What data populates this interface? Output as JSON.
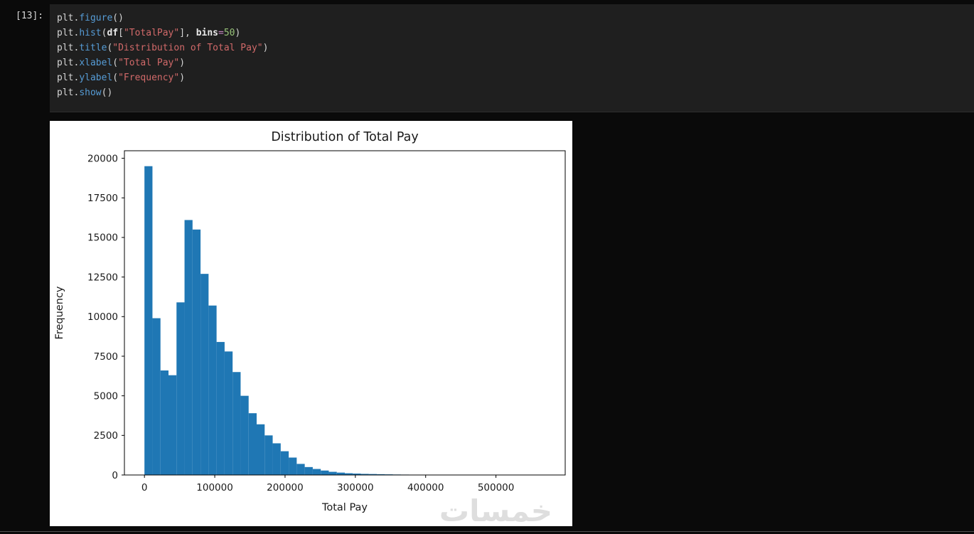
{
  "page": {
    "background": "#0a0a0a"
  },
  "code": {
    "prompt": "[13]:",
    "lines": [
      [
        [
          "plt",
          "n"
        ],
        [
          ".",
          "p"
        ],
        [
          "figure",
          "f"
        ],
        [
          "()",
          "p"
        ]
      ],
      [
        [
          "plt",
          "n"
        ],
        [
          ".",
          "p"
        ],
        [
          "hist",
          "f"
        ],
        [
          "(",
          "p"
        ],
        [
          "df",
          "k"
        ],
        [
          "[",
          "p"
        ],
        [
          "\"TotalPay\"",
          "s"
        ],
        [
          "]",
          "p"
        ],
        [
          ", ",
          "p"
        ],
        [
          "bins",
          "k"
        ],
        [
          "=",
          "op"
        ],
        [
          "50",
          "num"
        ],
        [
          ")",
          "p"
        ]
      ],
      [
        [
          "plt",
          "n"
        ],
        [
          ".",
          "p"
        ],
        [
          "title",
          "f"
        ],
        [
          "(",
          "p"
        ],
        [
          "\"Distribution of Total Pay\"",
          "s"
        ],
        [
          ")",
          "p"
        ]
      ],
      [
        [
          "plt",
          "n"
        ],
        [
          ".",
          "p"
        ],
        [
          "xlabel",
          "f"
        ],
        [
          "(",
          "p"
        ],
        [
          "\"Total Pay\"",
          "s"
        ],
        [
          ")",
          "p"
        ]
      ],
      [
        [
          "plt",
          "n"
        ],
        [
          ".",
          "p"
        ],
        [
          "ylabel",
          "f"
        ],
        [
          "(",
          "p"
        ],
        [
          "\"Frequency\"",
          "s"
        ],
        [
          ")",
          "p"
        ]
      ],
      [
        [
          "plt",
          "n"
        ],
        [
          ".",
          "p"
        ],
        [
          "show",
          "f"
        ],
        [
          "()",
          "p"
        ]
      ]
    ]
  },
  "figure": {
    "background": "#ffffff",
    "watermark": "خمسات"
  },
  "chart_data": {
    "type": "bar",
    "title": "Distribution of Total Pay",
    "xlabel": "Total Pay",
    "ylabel": "Frequency",
    "bins": 50,
    "bin_start": 0,
    "bin_width": 11400,
    "values": [
      19500,
      9900,
      6600,
      6300,
      10900,
      16100,
      15500,
      12700,
      10700,
      8400,
      7800,
      6500,
      5000,
      3900,
      3200,
      2500,
      2000,
      1500,
      1100,
      700,
      500,
      380,
      280,
      200,
      150,
      110,
      90,
      70,
      60,
      50,
      40,
      30,
      25,
      20,
      15,
      12,
      10,
      8,
      6,
      5,
      4,
      3,
      3,
      2,
      2,
      1,
      1,
      1,
      1,
      1
    ],
    "xticks": [
      0,
      100000,
      200000,
      300000,
      400000,
      500000
    ],
    "yticks": [
      0,
      2500,
      5000,
      7500,
      10000,
      12500,
      15000,
      17500,
      20000
    ],
    "xlim": [
      -28500,
      598500
    ],
    "ylim": [
      0,
      20475
    ],
    "grid": false,
    "legend": "none",
    "bar_color": "#1f77b4",
    "text_color": "#1a1a1a"
  }
}
